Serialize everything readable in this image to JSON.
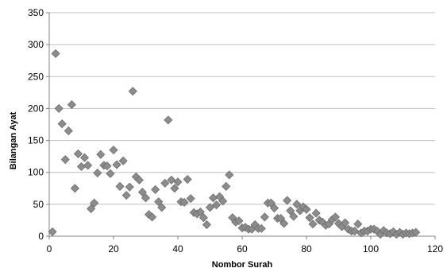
{
  "chart_data": {
    "type": "scatter",
    "title": "",
    "xlabel": "Nombor Surah",
    "ylabel": "Bilangan Ayat",
    "xlim": [
      0,
      120
    ],
    "ylim": [
      0,
      350
    ],
    "xticks": [
      0,
      20,
      40,
      60,
      80,
      100,
      120
    ],
    "yticks": [
      0,
      50,
      100,
      150,
      200,
      250,
      300,
      350
    ],
    "grid": {
      "horizontal": true,
      "vertical": false
    },
    "legend": "none",
    "marker": "diamond",
    "colors": {
      "marker": "#8c8c8c",
      "marker_edge": "#6e6e6e",
      "grid": "#bfbfbf",
      "axis": "#808080"
    },
    "series": [
      {
        "points": [
          [
            1,
            7
          ],
          [
            2,
            286
          ],
          [
            3,
            200
          ],
          [
            4,
            176
          ],
          [
            5,
            120
          ],
          [
            6,
            165
          ],
          [
            7,
            206
          ],
          [
            8,
            75
          ],
          [
            9,
            129
          ],
          [
            10,
            109
          ],
          [
            11,
            123
          ],
          [
            12,
            111
          ],
          [
            13,
            43
          ],
          [
            14,
            52
          ],
          [
            15,
            99
          ],
          [
            16,
            128
          ],
          [
            17,
            111
          ],
          [
            18,
            110
          ],
          [
            19,
            98
          ],
          [
            20,
            135
          ],
          [
            21,
            112
          ],
          [
            22,
            78
          ],
          [
            23,
            118
          ],
          [
            24,
            64
          ],
          [
            25,
            77
          ],
          [
            26,
            227
          ],
          [
            27,
            93
          ],
          [
            28,
            88
          ],
          [
            29,
            69
          ],
          [
            30,
            60
          ],
          [
            31,
            34
          ],
          [
            32,
            30
          ],
          [
            33,
            73
          ],
          [
            34,
            54
          ],
          [
            35,
            45
          ],
          [
            36,
            83
          ],
          [
            37,
            182
          ],
          [
            38,
            88
          ],
          [
            39,
            75
          ],
          [
            40,
            85
          ],
          [
            41,
            54
          ],
          [
            42,
            53
          ],
          [
            43,
            89
          ],
          [
            44,
            59
          ],
          [
            45,
            37
          ],
          [
            46,
            35
          ],
          [
            47,
            38
          ],
          [
            48,
            29
          ],
          [
            49,
            18
          ],
          [
            50,
            45
          ],
          [
            51,
            60
          ],
          [
            52,
            49
          ],
          [
            53,
            62
          ],
          [
            54,
            55
          ],
          [
            55,
            78
          ],
          [
            56,
            96
          ],
          [
            57,
            29
          ],
          [
            58,
            22
          ],
          [
            59,
            24
          ],
          [
            60,
            13
          ],
          [
            61,
            14
          ],
          [
            62,
            11
          ],
          [
            63,
            11
          ],
          [
            64,
            18
          ],
          [
            65,
            12
          ],
          [
            66,
            12
          ],
          [
            67,
            30
          ],
          [
            68,
            52
          ],
          [
            69,
            52
          ],
          [
            70,
            44
          ],
          [
            71,
            28
          ],
          [
            72,
            28
          ],
          [
            73,
            20
          ],
          [
            74,
            56
          ],
          [
            75,
            40
          ],
          [
            76,
            31
          ],
          [
            77,
            50
          ],
          [
            78,
            40
          ],
          [
            79,
            46
          ],
          [
            80,
            42
          ],
          [
            81,
            29
          ],
          [
            82,
            19
          ],
          [
            83,
            36
          ],
          [
            84,
            25
          ],
          [
            85,
            22
          ],
          [
            86,
            17
          ],
          [
            87,
            19
          ],
          [
            88,
            26
          ],
          [
            89,
            30
          ],
          [
            90,
            20
          ],
          [
            91,
            15
          ],
          [
            92,
            21
          ],
          [
            93,
            11
          ],
          [
            94,
            8
          ],
          [
            95,
            8
          ],
          [
            96,
            19
          ],
          [
            97,
            5
          ],
          [
            98,
            8
          ],
          [
            99,
            8
          ],
          [
            100,
            11
          ],
          [
            101,
            11
          ],
          [
            102,
            8
          ],
          [
            103,
            3
          ],
          [
            104,
            9
          ],
          [
            105,
            5
          ],
          [
            106,
            4
          ],
          [
            107,
            7
          ],
          [
            108,
            3
          ],
          [
            109,
            6
          ],
          [
            110,
            3
          ],
          [
            111,
            5
          ],
          [
            112,
            4
          ],
          [
            113,
            5
          ],
          [
            114,
            6
          ]
        ]
      }
    ]
  }
}
